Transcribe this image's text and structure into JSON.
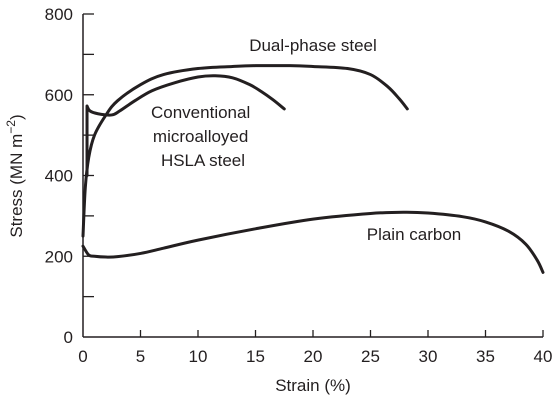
{
  "chart_data": {
    "type": "line",
    "title": "",
    "xlabel": "Strain (%)",
    "ylabel_main": "Stress (MN m",
    "ylabel_exp": "−2",
    "ylabel_close": ")",
    "xlim": [
      0,
      40
    ],
    "ylim": [
      0,
      800
    ],
    "x_ticks": [
      0,
      5,
      10,
      15,
      20,
      25,
      30,
      35,
      40
    ],
    "x_tick_labels": [
      "0",
      "5",
      "10",
      "15",
      "20",
      "25",
      "30",
      "35",
      "40"
    ],
    "y_ticks": [
      0,
      200,
      400,
      600,
      800
    ],
    "y_tick_labels": [
      "0",
      "200",
      "400",
      "600",
      "800"
    ],
    "y_minor_ticks": [
      100,
      300,
      500,
      700
    ],
    "grid": false,
    "legend": "none (curves labelled directly)",
    "series": [
      {
        "name": "Dual-phase steel",
        "label_lines": [
          "Dual-phase steel"
        ],
        "x": [
          0,
          0.2,
          0.5,
          1,
          2,
          3,
          5,
          7,
          10,
          13,
          15,
          18,
          20,
          23,
          25,
          26.5,
          27.5,
          28.2
        ],
        "y": [
          250,
          370,
          445,
          500,
          550,
          585,
          625,
          650,
          665,
          670,
          672,
          672,
          670,
          665,
          650,
          620,
          590,
          565
        ]
      },
      {
        "name": "Conventional microalloyed HSLA steel",
        "label_lines": [
          "Conventional",
          "microalloyed",
          "HSLA steel"
        ],
        "x": [
          0.35,
          0.35,
          0.6,
          1.3,
          2.5,
          3.2,
          4.5,
          6,
          8,
          10,
          11.5,
          13,
          14.5,
          15.5,
          16.5,
          17.5
        ],
        "y": [
          400,
          572,
          560,
          553,
          550,
          560,
          585,
          610,
          630,
          644,
          647,
          642,
          625,
          608,
          588,
          565
        ]
      },
      {
        "name": "Plain carbon",
        "label_lines": [
          "Plain carbon"
        ],
        "x": [
          0,
          0.5,
          1,
          2,
          3,
          5,
          7,
          10,
          15,
          20,
          25,
          28,
          30,
          33,
          35,
          37,
          38.5,
          39.5,
          40
        ],
        "y": [
          225,
          203,
          200,
          198,
          199,
          207,
          220,
          240,
          268,
          292,
          306,
          309,
          307,
          298,
          285,
          262,
          230,
          190,
          160
        ]
      }
    ]
  }
}
